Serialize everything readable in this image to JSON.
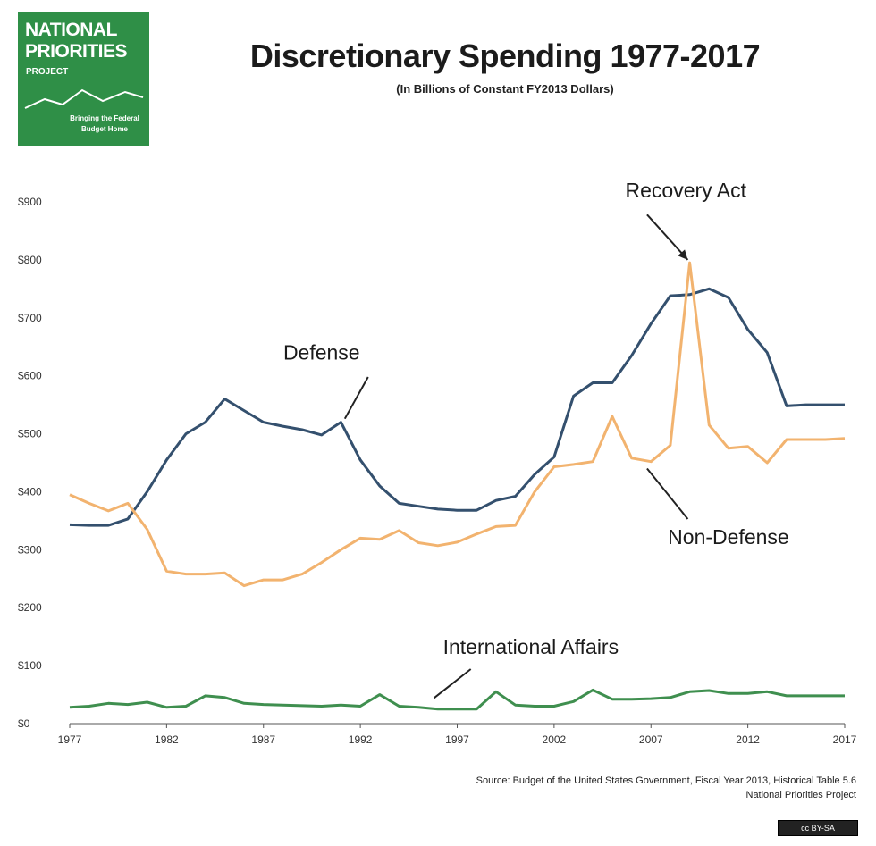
{
  "logo": {
    "line1": "NATIONAL",
    "line2": "PRIORITIES",
    "line3": "PROJECT",
    "tagline": "Bringing the Federal Budget Home",
    "color": "#2f8f47"
  },
  "source": {
    "line1": "Source: Budget of the United States Government, Fiscal Year 2013, Historical Table 5.6",
    "line2": "National Priorities Project"
  },
  "license_badge": "cc BY-SA",
  "chart_data": {
    "type": "line",
    "title": "Discretionary Spending 1977-2017",
    "subtitle": "(In Billions of Constant FY2013 Dollars)",
    "xlabel": "",
    "ylabel": "",
    "x": [
      1977,
      1978,
      1979,
      1980,
      1981,
      1982,
      1983,
      1984,
      1985,
      1986,
      1987,
      1988,
      1989,
      1990,
      1991,
      1992,
      1993,
      1994,
      1995,
      1996,
      1997,
      1998,
      1999,
      2000,
      2001,
      2002,
      2003,
      2004,
      2005,
      2006,
      2007,
      2008,
      2009,
      2010,
      2011,
      2012,
      2013,
      2014,
      2015,
      2016,
      2017
    ],
    "xticks": [
      "1977",
      "1982",
      "1987",
      "1992",
      "1997",
      "2002",
      "2007",
      "2012",
      "2017"
    ],
    "xtick_values": [
      1977,
      1982,
      1987,
      1992,
      1997,
      2002,
      2007,
      2012,
      2017
    ],
    "ylim": [
      0,
      900
    ],
    "yticks": [
      "$0",
      "$100",
      "$200",
      "$300",
      "$400",
      "$500",
      "$600",
      "$700",
      "$800",
      "$900"
    ],
    "ytick_values": [
      0,
      100,
      200,
      300,
      400,
      500,
      600,
      700,
      800,
      900
    ],
    "grid": false,
    "series": [
      {
        "name": "Defense",
        "color": "#34506e",
        "values": [
          343,
          342,
          342,
          353,
          400,
          455,
          500,
          520,
          560,
          540,
          520,
          513,
          507,
          498,
          520,
          455,
          410,
          380,
          375,
          370,
          368,
          368,
          385,
          392,
          430,
          460,
          565,
          588,
          588,
          635,
          690,
          738,
          740,
          750,
          735,
          680,
          640,
          548,
          550,
          550,
          550
        ]
      },
      {
        "name": "Non-Defense",
        "color": "#f2b36f",
        "values": [
          395,
          380,
          367,
          380,
          335,
          263,
          258,
          258,
          260,
          238,
          248,
          248,
          258,
          278,
          300,
          320,
          318,
          333,
          312,
          307,
          313,
          327,
          340,
          342,
          400,
          443,
          447,
          452,
          530,
          458,
          452,
          480,
          795,
          515,
          475,
          478,
          450,
          490,
          490,
          490,
          492
        ]
      },
      {
        "name": "International Affairs",
        "color": "#3f8f4f",
        "values": [
          28,
          30,
          35,
          33,
          37,
          28,
          30,
          48,
          45,
          35,
          33,
          32,
          31,
          30,
          32,
          30,
          50,
          30,
          28,
          25,
          25,
          25,
          55,
          32,
          30,
          30,
          38,
          58,
          42,
          42,
          43,
          45,
          55,
          57,
          52,
          52,
          55,
          48,
          48,
          48,
          48
        ]
      }
    ],
    "annotations": [
      {
        "text": "Recovery Act",
        "label_year": 2008.8,
        "label_value": 908,
        "arrow_from": [
          2006.8,
          878
        ],
        "arrow_to": [
          2008.9,
          800
        ]
      },
      {
        "text": "Defense",
        "label_year": 1990,
        "label_value": 628,
        "arrow_from": [
          1992.4,
          598
        ],
        "arrow_to": [
          1991.2,
          526
        ]
      },
      {
        "text": "Non-Defense",
        "label_year": 2011,
        "label_value": 310,
        "arrow_from": [
          2008.9,
          353
        ],
        "arrow_to": [
          2006.8,
          440
        ]
      },
      {
        "text": "International Affairs",
        "label_year": 2000.8,
        "label_value": 120,
        "arrow_from": [
          1997.7,
          94
        ],
        "arrow_to": [
          1995.8,
          44
        ]
      }
    ]
  }
}
